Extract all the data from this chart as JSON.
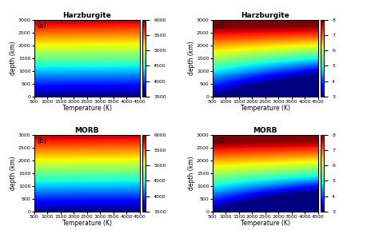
{
  "titles": [
    "Harzburgite",
    "MORB",
    "Harzburgite",
    "MORB"
  ],
  "labels": [
    "(a)",
    "(b)",
    "(c)",
    "(d)"
  ],
  "xlabel": "Temperature (K)",
  "ylabel": "depth (km)",
  "xmin": 500,
  "xmax": 4500,
  "ymin": 0,
  "ymax": 3000,
  "colorbar_ab_min": 3500,
  "colorbar_ab_max": 6000,
  "colorbar_ab_ticks": [
    3500,
    4000,
    4500,
    5000,
    5500,
    6000
  ],
  "colorbar_cd_min": 3,
  "colorbar_cd_max": 8,
  "colorbar_cd_ticks": [
    3,
    4,
    5,
    6,
    7,
    8
  ],
  "xticks": [
    500,
    1000,
    1500,
    2000,
    2500,
    3000,
    3500,
    4000,
    4500
  ],
  "yticks": [
    0,
    500,
    1000,
    1500,
    2000,
    2500,
    3000
  ],
  "nx": 200,
  "ny": 200
}
